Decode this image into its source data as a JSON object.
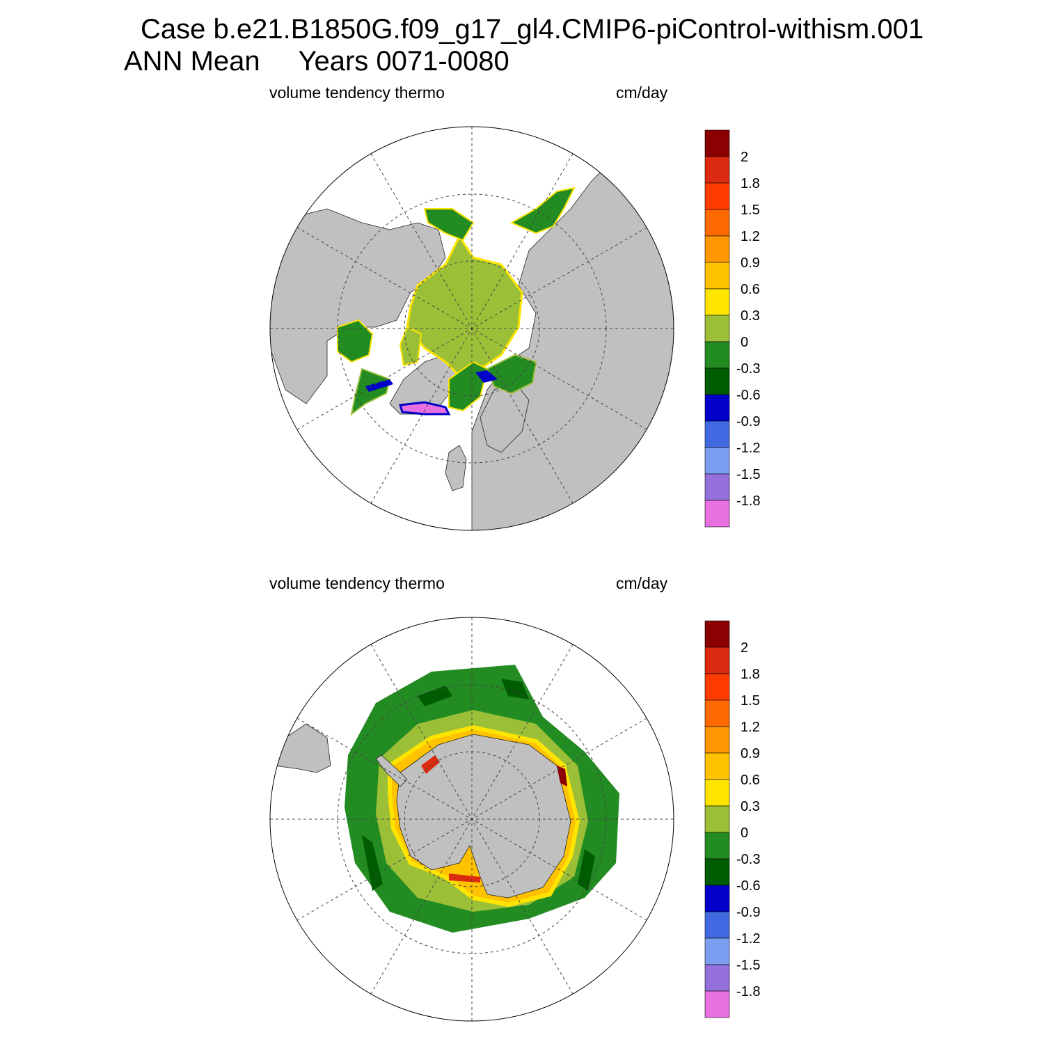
{
  "figure": {
    "title_line1": "Case b.e21.B1850G.f09_g17_gl4.CMIP6-piControl-withism.001",
    "title_line2": "ANN Mean     Years 0071-0080"
  },
  "panels": [
    {
      "id": "north",
      "left_label": "volume tendency thermo",
      "right_label": "cm/day",
      "hemisphere": "Northern Hemisphere polar stereographic"
    },
    {
      "id": "south",
      "left_label": "volume tendency thermo",
      "right_label": "cm/day",
      "hemisphere": "Southern Hemisphere polar stereographic"
    }
  ],
  "colorbar": {
    "levels": [
      "2",
      "1.8",
      "1.5",
      "1.2",
      "0.9",
      "0.6",
      "0.3",
      "0",
      "-0.3",
      "-0.6",
      "-0.9",
      "-1.2",
      "-1.5",
      "-1.8"
    ],
    "colors": [
      "#8b0000",
      "#dc2a10",
      "#ff3c00",
      "#ff6a00",
      "#ff9800",
      "#ffc200",
      "#ffe400",
      "#9bc038",
      "#228b22",
      "#005c00",
      "#0000c8",
      "#4169e1",
      "#7b9ef0",
      "#9370db",
      "#e870e0"
    ]
  },
  "map_colors": {
    "land": "#c0c0c0",
    "ocean": "#ffffff",
    "grid": "#444444"
  }
}
